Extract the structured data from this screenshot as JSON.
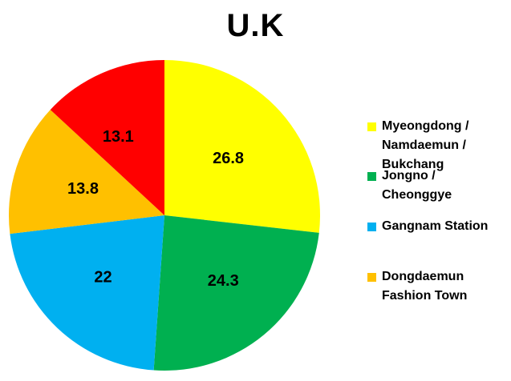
{
  "chart_data": {
    "type": "pie",
    "title": "U.K",
    "categories": [
      "Myeongdong / Namdaemun / Bukchang",
      "Jongno / Cheonggye",
      "Gangnam Station",
      "Dongdaemun Fashion Town",
      ""
    ],
    "values": [
      26.8,
      24.3,
      22,
      13.8,
      13.1
    ],
    "value_labels": [
      "26.8",
      "24.3",
      "22",
      "13.8",
      "13.1"
    ],
    "colors": [
      "#FFFF00",
      "#00B050",
      "#00B0F0",
      "#FFC000",
      "#FF0000"
    ],
    "start_angle_deg": 0,
    "direction": "clockwise",
    "legend": {
      "placement": "right",
      "entries": [
        {
          "label": "Myeongdong / Namdaemun / Bukchang",
          "color": "#FFFF00"
        },
        {
          "label": "Jongno / Cheonggye",
          "color": "#00B050"
        },
        {
          "label": "Gangnam Station",
          "color": "#00B0F0"
        },
        {
          "label": "Dongdaemun Fashion Town",
          "color": "#FFC000"
        }
      ]
    }
  }
}
